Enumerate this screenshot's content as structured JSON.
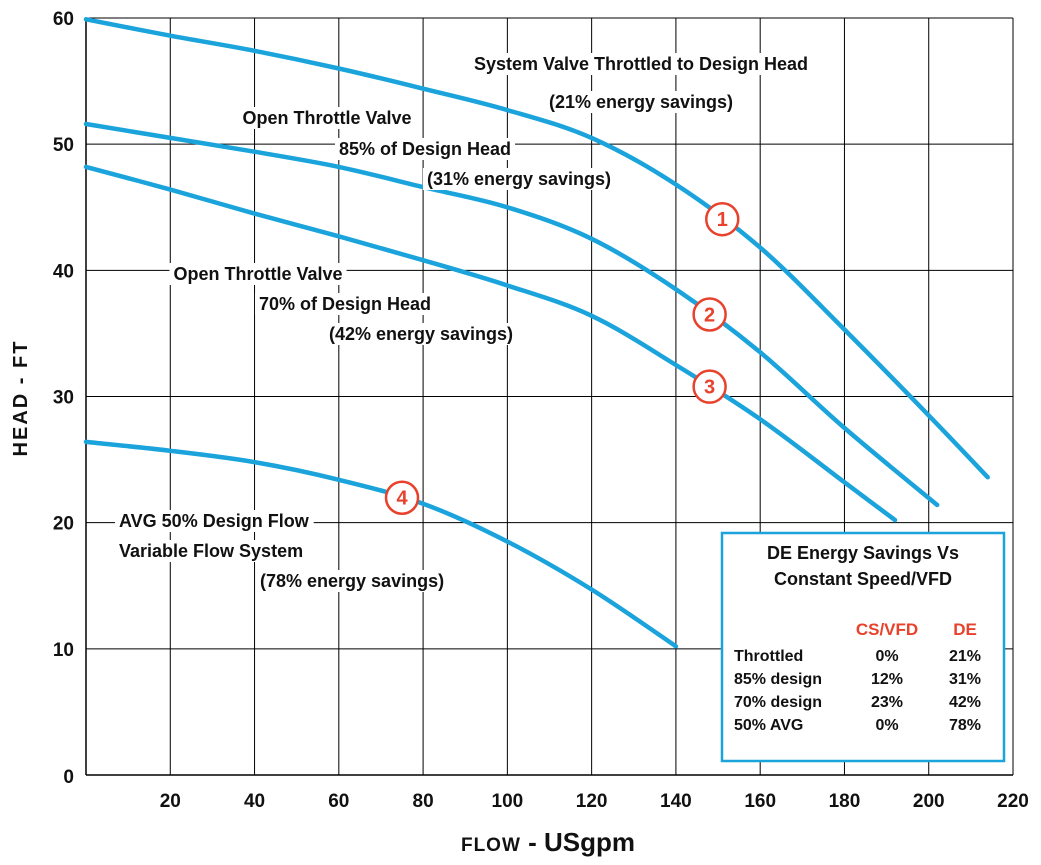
{
  "chart_data": {
    "type": "line",
    "xlabel_prefix": "FLOW",
    "xlabel_suffix": " - USgpm",
    "ylabel": "HEAD - FT",
    "xlim": [
      0,
      220
    ],
    "ylim": [
      0,
      60
    ],
    "x_ticks": [
      "20",
      "40",
      "60",
      "80",
      "100",
      "120",
      "140",
      "160",
      "180",
      "200",
      "220"
    ],
    "y_ticks": [
      "0",
      "10",
      "20",
      "30",
      "40",
      "50",
      "60"
    ],
    "grid": true,
    "series": [
      {
        "marker": "1",
        "marker_x": 151,
        "x": [
          0,
          20,
          40,
          60,
          80,
          100,
          120,
          140,
          160,
          180,
          200,
          214
        ],
        "y": [
          59.9,
          58.6,
          57.4,
          56.0,
          54.4,
          52.7,
          50.5,
          46.8,
          41.8,
          35.3,
          28.5,
          23.6
        ],
        "annotation_lines": [
          "System Valve Throttled to Design Head",
          "(21% energy savings)"
        ]
      },
      {
        "marker": "2",
        "marker_x": 148,
        "x": [
          0,
          20,
          40,
          60,
          80,
          100,
          120,
          140,
          160,
          180,
          202
        ],
        "y": [
          51.6,
          50.5,
          49.4,
          48.2,
          46.6,
          45.0,
          42.5,
          38.5,
          33.5,
          27.5,
          21.4
        ],
        "annotation_lines": [
          "Open Throttle Valve",
          "85% of Design Head",
          "(31% energy savings)"
        ]
      },
      {
        "marker": "3",
        "marker_x": 148,
        "x": [
          0,
          20,
          40,
          60,
          80,
          100,
          120,
          140,
          160,
          180,
          192
        ],
        "y": [
          48.2,
          46.4,
          44.5,
          42.7,
          40.8,
          38.8,
          36.4,
          32.5,
          28.2,
          23.2,
          20.2
        ],
        "annotation_lines": [
          "Open Throttle Valve",
          "70% of Design Head",
          "(42% energy savings)"
        ]
      },
      {
        "marker": "4",
        "marker_x": 75,
        "x": [
          0,
          20,
          40,
          60,
          80,
          100,
          120,
          140
        ],
        "y": [
          26.4,
          25.7,
          24.8,
          23.4,
          21.5,
          18.5,
          14.7,
          10.2
        ],
        "annotation_lines": [
          "AVG 50% Design Flow",
          "Variable Flow System",
          "(78% energy savings)"
        ]
      }
    ],
    "table": {
      "title_lines": [
        "DE Energy Savings Vs",
        "Constant Speed/VFD"
      ],
      "columns": [
        "",
        "CS/VFD",
        "DE"
      ],
      "rows": [
        [
          "Throttled",
          "0%",
          "21%"
        ],
        [
          "85% design",
          "12%",
          "31%"
        ],
        [
          "70% design",
          "23%",
          "42%"
        ],
        [
          "50% AVG",
          "0%",
          "78%"
        ]
      ]
    },
    "colors": {
      "curve": "#1ba3dc",
      "marker": "#e8412c",
      "table_header": "#e8412c",
      "table_border": "#1ba3dc"
    }
  }
}
